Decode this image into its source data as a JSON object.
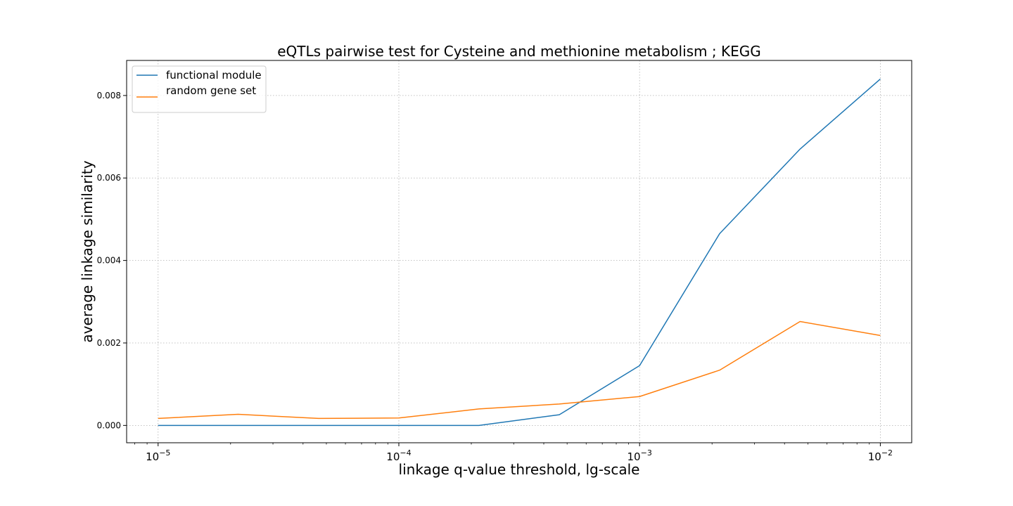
{
  "chart_data": {
    "type": "line",
    "title": "eQTLs pairwise test for Cysteine and methionine metabolism ; KEGG",
    "xlabel": "linkage q-value threshold, lg-scale",
    "ylabel": "average linkage similarity",
    "xscale": "log",
    "xlim": [
      7.4e-06,
      0.0135
    ],
    "ylim": [
      -0.00042,
      0.00885
    ],
    "grid": true,
    "legend_position": "upper-left",
    "x_ticks": [
      {
        "base": "10",
        "exp": "−5",
        "value": 1e-05
      },
      {
        "base": "10",
        "exp": "−4",
        "value": 0.0001
      },
      {
        "base": "10",
        "exp": "−3",
        "value": 0.001
      },
      {
        "base": "10",
        "exp": "−2",
        "value": 0.01
      }
    ],
    "y_ticks": [
      {
        "label": "0.000",
        "value": 0
      },
      {
        "label": "0.002",
        "value": 0.002
      },
      {
        "label": "0.004",
        "value": 0.004
      },
      {
        "label": "0.006",
        "value": 0.006
      },
      {
        "label": "0.008",
        "value": 0.008
      }
    ],
    "x": [
      1e-05,
      2.15e-05,
      4.64e-05,
      0.0001,
      0.000215,
      0.000464,
      0.001,
      0.00215,
      0.00464,
      0.01
    ],
    "series": [
      {
        "name": "functional module",
        "color": "#1f77b4",
        "values": [
          0,
          0,
          0,
          0,
          0,
          0.00026,
          0.00145,
          0.00465,
          0.0067,
          0.0084
        ]
      },
      {
        "name": "random gene set",
        "color": "#ff7f0e",
        "values": [
          0.00017,
          0.00027,
          0.00017,
          0.00018,
          0.0004,
          0.00052,
          0.0007,
          0.00134,
          0.00252,
          0.00218
        ]
      }
    ]
  }
}
